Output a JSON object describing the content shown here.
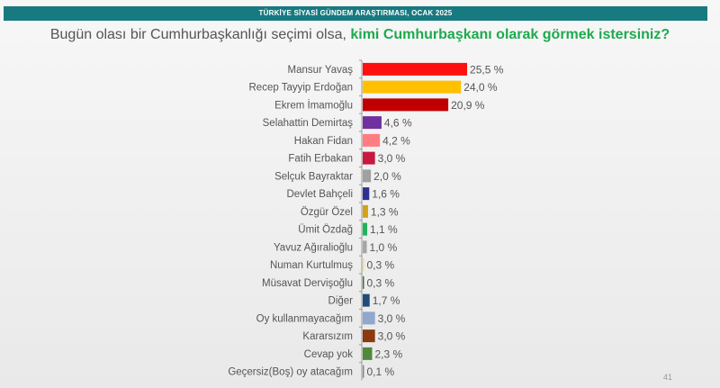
{
  "header": {
    "banner": "TÜRKİYE SİYASİ GÜNDEM ARAŞTIRMASI, OCAK 2025",
    "question_plain": "Bugün olası bir Cumhurbaşkanlığı seçimi olsa, ",
    "question_bold": "kimi Cumhurbaşkanı olarak görmek istersiniz?",
    "page_number": "41"
  },
  "chart_data": {
    "type": "bar",
    "orientation": "horizontal",
    "grid": false,
    "legend": "none",
    "xlim": [
      0,
      26
    ],
    "categories": [
      "Mansur Yavaş",
      "Recep Tayyip Erdoğan",
      "Ekrem İmamoğlu",
      "Selahattin Demirtaş",
      "Hakan Fidan",
      "Fatih Erbakan",
      "Selçuk Bayraktar",
      "Devlet Bahçeli",
      "Özgür Özel",
      "Ümit Özdağ",
      "Yavuz Ağıralioğlu",
      "Numan Kurtulmuş",
      "Müsavat Dervişoğlu",
      "Diğer",
      "Oy kullanmayacağım",
      "Kararsızım",
      "Cevap yok",
      "Geçersiz(Boş) oy atacağım"
    ],
    "values": [
      25.5,
      24.0,
      20.9,
      4.6,
      4.2,
      3.0,
      2.0,
      1.6,
      1.3,
      1.1,
      1.0,
      0.3,
      0.3,
      1.7,
      3.0,
      3.0,
      2.3,
      0.1
    ],
    "labels": [
      "25,5 %",
      "24,0 %",
      "20,9 %",
      "4,6 %",
      "4,2 %",
      "3,0 %",
      "2,0 %",
      "1,6 %",
      "1,3 %",
      "1,1 %",
      "1,0 %",
      "0,3 %",
      "0,3 %",
      "1,7 %",
      "3,0 %",
      "3,0 %",
      "2,3 %",
      "0,1 %"
    ],
    "colors": [
      "#ff1010",
      "#ffc000",
      "#c00000",
      "#7030a0",
      "#ff7c80",
      "#c8183f",
      "#a0a0a0",
      "#2e3192",
      "#d4a017",
      "#1fb35a",
      "#a6a6a6",
      "#e8e28a",
      "#4a6b3a",
      "#1f4e79",
      "#8fa8cc",
      "#8b3a0f",
      "#4f8a3a",
      "#888888"
    ]
  }
}
